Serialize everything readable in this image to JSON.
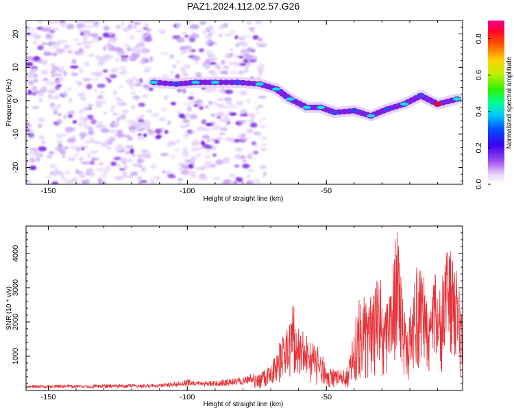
{
  "figure_title": "PAZ1.2024.112.02.57.G26",
  "colors": {
    "snr_line": "#e8333a",
    "spectrogram_low": "#e4d2fb",
    "spectrogram_mid": "#7a1fe3",
    "spectrogram_high": "#00e6e6",
    "spectrogram_peak": "#ff0000"
  },
  "chart_data": [
    {
      "type": "heatmap",
      "title": "PAZ1.2024.112.02.57.G26",
      "xlabel": "Height of straight line (km)",
      "ylabel": "Frequency (Hz)",
      "xlim": [
        -158,
        -1
      ],
      "ylim": [
        -25,
        24
      ],
      "x_ticks": [
        "-150",
        "-100",
        "-50"
      ],
      "y_ticks": [
        "-20",
        "-10",
        "0",
        "10",
        "20"
      ],
      "colorbar": {
        "label": "Normalized spectral amplitude",
        "range": [
          0,
          0.9
        ],
        "ticks": [
          "0.0",
          "0.2",
          "0.4",
          "0.6",
          "0.8"
        ],
        "colormap": "white-purple-blue-cyan-green-yellow-orange-red-magenta"
      },
      "signal_ridge": [
        {
          "x": -112,
          "y": 5.5,
          "amp": 0.25
        },
        {
          "x": -104,
          "y": 5.0,
          "amp": 0.2
        },
        {
          "x": -97,
          "y": 5.5,
          "amp": 0.3
        },
        {
          "x": -90,
          "y": 5.5,
          "amp": 0.25
        },
        {
          "x": -82,
          "y": 5.5,
          "amp": 0.2
        },
        {
          "x": -74,
          "y": 5.0,
          "amp": 0.3
        },
        {
          "x": -68,
          "y": 3.5,
          "amp": 0.25
        },
        {
          "x": -63,
          "y": 0.5,
          "amp": 0.25
        },
        {
          "x": -57,
          "y": -2.0,
          "amp": 0.25
        },
        {
          "x": -52,
          "y": -2.0,
          "amp": 0.25
        },
        {
          "x": -47,
          "y": -3.5,
          "amp": 0.2
        },
        {
          "x": -40,
          "y": -3.0,
          "amp": 0.2
        },
        {
          "x": -34,
          "y": -4.5,
          "amp": 0.25
        },
        {
          "x": -28,
          "y": -2.5,
          "amp": 0.2
        },
        {
          "x": -22,
          "y": -1.0,
          "amp": 0.25
        },
        {
          "x": -16,
          "y": 1.5,
          "amp": 0.2
        },
        {
          "x": -10,
          "y": -1.0,
          "amp": 0.8
        },
        {
          "x": -3,
          "y": 0.5,
          "amp": 0.3
        }
      ],
      "noise_region_x": [
        -158,
        -72
      ]
    },
    {
      "type": "line",
      "xlabel": "Height of straight line (km)",
      "ylabel": "SNR (10 * v/v)",
      "xlim": [
        -158,
        -1
      ],
      "ylim": [
        0,
        4800
      ],
      "x_ticks": [
        "-150",
        "-100",
        "-50"
      ],
      "y_ticks": [
        "1000",
        "2000",
        "3000",
        "4000"
      ],
      "envelope": {
        "x": [
          -158,
          -140,
          -120,
          -110,
          -100,
          -95,
          -90,
          -80,
          -75,
          -70,
          -67,
          -64,
          -62,
          -60,
          -58,
          -55,
          -52,
          -50,
          -48,
          -45,
          -42,
          -39,
          -37,
          -35,
          -33,
          -31,
          -29,
          -27,
          -25,
          -23,
          -21,
          -19,
          -17,
          -15,
          -13,
          -11,
          -9,
          -7,
          -5,
          -3,
          -1
        ],
        "y": [
          120,
          130,
          140,
          150,
          250,
          200,
          220,
          300,
          420,
          700,
          1300,
          1700,
          2400,
          1800,
          1600,
          1300,
          1200,
          500,
          600,
          550,
          700,
          2200,
          2900,
          2500,
          2600,
          3300,
          2200,
          2800,
          4700,
          3100,
          1600,
          2700,
          3700,
          3200,
          2100,
          3500,
          3300,
          4000,
          3900,
          3300,
          2300
        ]
      }
    }
  ]
}
